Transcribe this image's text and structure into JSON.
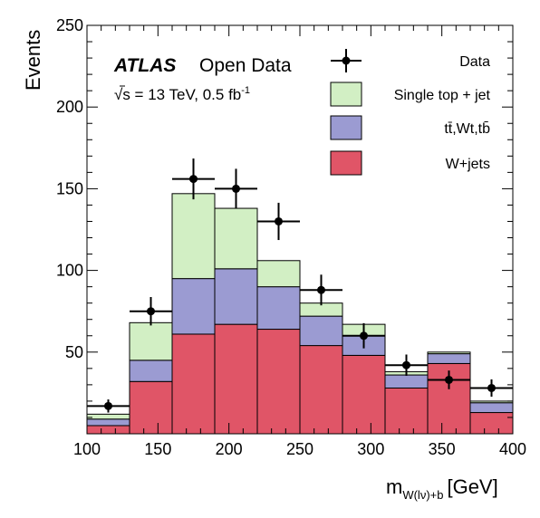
{
  "chart_data": {
    "type": "bar",
    "stacked": true,
    "xlabel": "m",
    "xlabel_sub": "W(lν)+b",
    "xlabel_unit": "[GeV]",
    "ylabel": "Events",
    "xlim": [
      100,
      400
    ],
    "ylim": [
      0,
      250
    ],
    "x_ticks": [
      100,
      150,
      200,
      250,
      300,
      350,
      400
    ],
    "y_ticks": [
      50,
      100,
      150,
      200,
      250
    ],
    "bin_edges": [
      100,
      130,
      160,
      190,
      220,
      250,
      280,
      310,
      340,
      370,
      400
    ],
    "series": [
      {
        "name": "W+jets",
        "color": "#e05567",
        "values": [
          5,
          32,
          61,
          67,
          64,
          54,
          48,
          28,
          43,
          13
        ]
      },
      {
        "name": "tt̄,Wt,tb̄",
        "color": "#9b9bd2",
        "values": [
          4,
          13,
          34,
          34,
          26,
          18,
          12,
          8,
          6,
          6
        ]
      },
      {
        "name": "Single top + jet",
        "color": "#d2efc4",
        "values": [
          3,
          23,
          52,
          37,
          16,
          8,
          7,
          2,
          1,
          1
        ]
      }
    ],
    "data_points": {
      "name": "Data",
      "x": [
        115,
        145,
        175,
        205,
        235,
        265,
        295,
        325,
        355,
        385
      ],
      "y": [
        17,
        75,
        156,
        150,
        130,
        88,
        60,
        42,
        33,
        28
      ],
      "yerr": [
        4,
        8.7,
        12.5,
        12.2,
        11.4,
        9.4,
        7.7,
        6.5,
        5.7,
        5.3
      ],
      "xerr": 15
    },
    "legend_placement": "top-right",
    "annotation": {
      "experiment": "ATLAS",
      "label": "Open Data",
      "energy": "√s = 13 TeV, 0.5 fb",
      "lumi_exp": "-1"
    }
  }
}
